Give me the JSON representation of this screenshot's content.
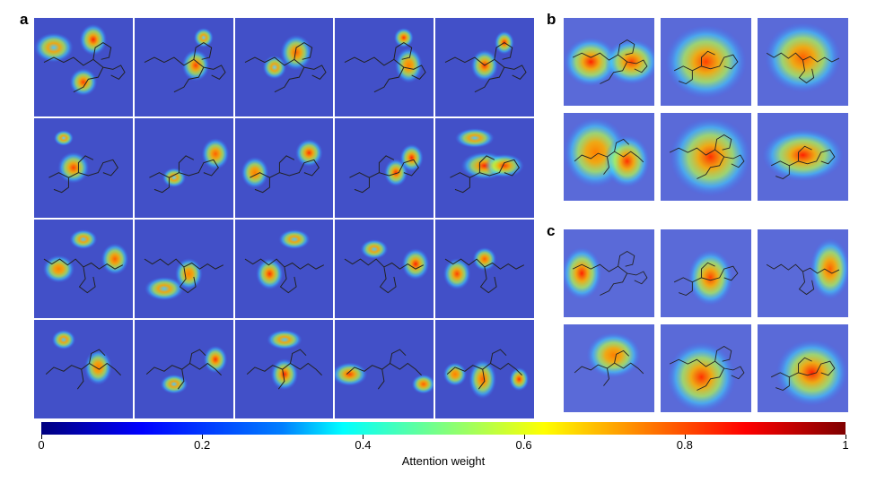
{
  "panels": {
    "a": "a",
    "b": "b",
    "c": "c"
  },
  "colorbar": {
    "label": "Attention weight",
    "ticks": [
      "0",
      "0.2",
      "0.4",
      "0.6",
      "0.8",
      "1"
    ],
    "range": [
      0,
      1
    ],
    "colormap": "jet"
  },
  "colors": {
    "background_low": "#4250c8",
    "divider": "#ffffff",
    "molecule": "#222222"
  }
}
